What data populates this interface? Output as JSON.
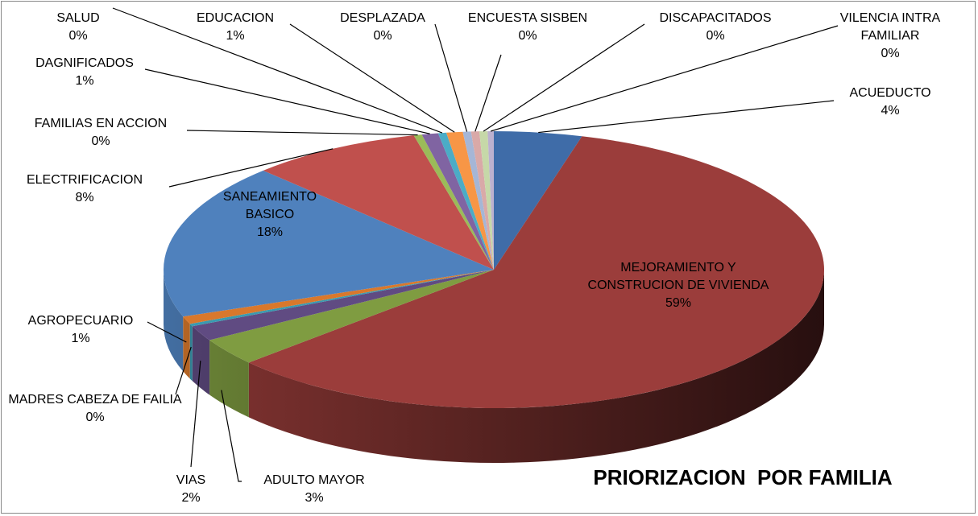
{
  "chart_data": {
    "type": "pie",
    "title": "PRIORIZACION  POR FAMILIA",
    "categories": [
      "ACUEDUCTO",
      "MEJORAMIENTO Y CONSTRUCION DE VIVIENDA",
      "ADULTO MAYOR",
      "VIAS",
      "MADRES CABEZA DE FAILIA",
      "AGROPECUARIO",
      "SANEAMIENTO BASICO",
      "ELECTRIFICACION",
      "FAMILIAS EN ACCION",
      "DAGNIFICADOS",
      "SALUD",
      "EDUCACION",
      "DESPLAZADA",
      "ENCUESTA SISBEN",
      "DISCAPACITADOS",
      "VILENCIA INTRA FAMILIAR"
    ],
    "values": [
      4.3,
      59.0,
      3.2,
      1.8,
      0.3,
      0.9,
      18.2,
      8.4,
      0.4,
      0.8,
      0.4,
      0.8,
      0.4,
      0.4,
      0.4,
      0.3
    ],
    "value_labels": [
      "4%",
      "59%",
      "3%",
      "2%",
      "0%",
      "1%",
      "18%",
      "8%",
      "0%",
      "1%",
      "0%",
      "1%",
      "0%",
      "0%",
      "0%",
      "0%"
    ],
    "colors": [
      "#3f6ca8",
      "#9b3d3b",
      "#7f9c41",
      "#604b82",
      "#3a9ab0",
      "#d9782c",
      "#4f81bd",
      "#c0504d",
      "#9bbb59",
      "#8064a2",
      "#4bacc6",
      "#f79646",
      "#a5b6d6",
      "#d9a9a8",
      "#c6d8a8",
      "#bcb1cf"
    ]
  }
}
